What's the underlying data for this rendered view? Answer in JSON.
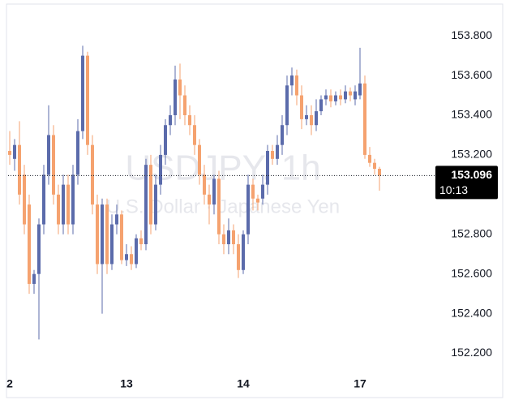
{
  "chart_data": {
    "type": "candlestick",
    "title": "USDJPY, 1h",
    "subtitle": "U.S. Dollar · Japanese Yen",
    "categories": [
      "2",
      null,
      null,
      null,
      null,
      null,
      null,
      null,
      null,
      null,
      null,
      null,
      null,
      null,
      null,
      null,
      null,
      null,
      null,
      null,
      null,
      null,
      null,
      null,
      "13",
      null,
      null,
      null,
      null,
      null,
      null,
      null,
      null,
      null,
      null,
      null,
      null,
      null,
      null,
      null,
      null,
      null,
      null,
      null,
      null,
      null,
      null,
      null,
      "14",
      null,
      null,
      null,
      null,
      null,
      null,
      null,
      null,
      null,
      null,
      null,
      null,
      null,
      null,
      null,
      null,
      null,
      null,
      null,
      null,
      null,
      null,
      null,
      "17",
      null,
      null,
      null,
      null
    ],
    "open": [
      153.22,
      153.18,
      153.25,
      153.1,
      152.95,
      152.55,
      152.6,
      152.85,
      153.1,
      153.3,
      153.0,
      152.85,
      153.05,
      152.85,
      153.1,
      153.32,
      153.7,
      153.25,
      152.95,
      152.65,
      152.95,
      152.65,
      152.85,
      152.9,
      152.67,
      152.7,
      152.65,
      152.78,
      152.75,
      153.15,
      152.85,
      153.05,
      153.2,
      153.35,
      153.4,
      153.58,
      153.5,
      153.4,
      153.35,
      153.25,
      153.1,
      153.0,
      152.95,
      153.08,
      152.8,
      152.75,
      152.82,
      152.75,
      152.62,
      152.8,
      153.05,
      152.98,
      152.98,
      153.05,
      153.22,
      153.18,
      153.25,
      153.35,
      153.55,
      153.6,
      153.5,
      153.38,
      153.4,
      153.35,
      153.42,
      153.48,
      153.5,
      153.47,
      153.5,
      153.48,
      153.52,
      153.48,
      153.5,
      153.56,
      153.2,
      153.16,
      153.13
    ],
    "high": [
      153.32,
      153.28,
      153.37,
      153.15,
      153.0,
      152.62,
      152.88,
      153.15,
      153.45,
      153.35,
      153.05,
      153.1,
      153.1,
      153.15,
      153.38,
      153.75,
      153.72,
      153.3,
      153.0,
      152.98,
      152.98,
      152.9,
      152.95,
      152.92,
      152.75,
      152.74,
      152.8,
      152.82,
      153.18,
      153.2,
      153.1,
      153.25,
      153.38,
      153.45,
      153.65,
      153.66,
      153.55,
      153.45,
      153.4,
      153.28,
      153.15,
      153.05,
      153.1,
      153.12,
      152.85,
      152.88,
      152.85,
      152.8,
      152.82,
      153.1,
      153.08,
      153.0,
      153.1,
      153.25,
      153.25,
      153.3,
      153.4,
      153.6,
      153.64,
      153.63,
      153.55,
      153.45,
      153.45,
      153.48,
      153.5,
      153.53,
      153.53,
      153.52,
      153.53,
      153.55,
      153.54,
      153.55,
      153.74,
      153.6,
      153.24,
      153.18,
      153.14
    ],
    "low": [
      153.15,
      153.12,
      152.95,
      152.8,
      152.5,
      152.5,
      152.27,
      152.8,
      153.05,
      152.95,
      152.8,
      152.8,
      152.8,
      152.8,
      153.05,
      153.28,
      153.2,
      152.9,
      152.6,
      152.4,
      152.6,
      152.62,
      152.8,
      152.65,
      152.64,
      152.62,
      152.63,
      152.72,
      152.72,
      152.8,
      152.82,
      153.0,
      153.15,
      153.3,
      153.35,
      153.38,
      153.35,
      153.3,
      153.2,
      153.05,
      152.95,
      152.85,
      152.9,
      152.75,
      152.7,
      152.7,
      152.7,
      152.58,
      152.6,
      152.75,
      152.92,
      152.92,
      152.95,
      153.0,
      153.15,
      153.15,
      153.2,
      153.3,
      153.5,
      153.45,
      153.33,
      153.35,
      153.3,
      153.32,
      153.4,
      153.45,
      153.44,
      153.45,
      153.45,
      153.46,
      153.47,
      153.45,
      153.48,
      153.18,
      153.14,
      153.1,
      153.02
    ],
    "close": [
      153.2,
      153.25,
      153.0,
      152.85,
      152.55,
      152.6,
      152.85,
      153.1,
      153.3,
      153.0,
      152.85,
      153.05,
      152.85,
      153.1,
      153.32,
      153.7,
      153.25,
      152.95,
      152.65,
      152.95,
      152.65,
      152.85,
      152.9,
      152.67,
      152.7,
      152.65,
      152.78,
      152.75,
      153.15,
      152.85,
      153.05,
      153.2,
      153.35,
      153.4,
      153.58,
      153.5,
      153.4,
      153.35,
      153.25,
      153.1,
      153.0,
      152.95,
      153.08,
      152.8,
      152.75,
      152.82,
      152.75,
      152.62,
      152.8,
      153.05,
      152.98,
      152.96,
      153.05,
      153.22,
      153.18,
      153.25,
      153.35,
      153.55,
      153.6,
      153.5,
      153.38,
      153.4,
      153.35,
      153.42,
      153.48,
      153.5,
      153.47,
      153.5,
      153.48,
      153.52,
      153.5,
      153.52,
      153.56,
      153.2,
      153.16,
      153.13,
      153.096
    ],
    "up_color": "#5b6bab",
    "down_color": "#f5a26f",
    "ylim": [
      152.1,
      153.96
    ],
    "yticks": [
      {
        "value": 152.2,
        "label": "152.200"
      },
      {
        "value": 152.4,
        "label": "152.400"
      },
      {
        "value": 152.6,
        "label": "152.600"
      },
      {
        "value": 152.8,
        "label": "152.800"
      },
      {
        "value": 153.0,
        "label": "153.000"
      },
      {
        "value": 153.2,
        "label": "153.200"
      },
      {
        "value": 153.4,
        "label": "153.400"
      },
      {
        "value": 153.6,
        "label": "153.600"
      },
      {
        "value": 153.8,
        "label": "153.800"
      }
    ],
    "hidden_yticks": [
      3
    ],
    "last_price": 153.096,
    "countdown": "10:13"
  }
}
